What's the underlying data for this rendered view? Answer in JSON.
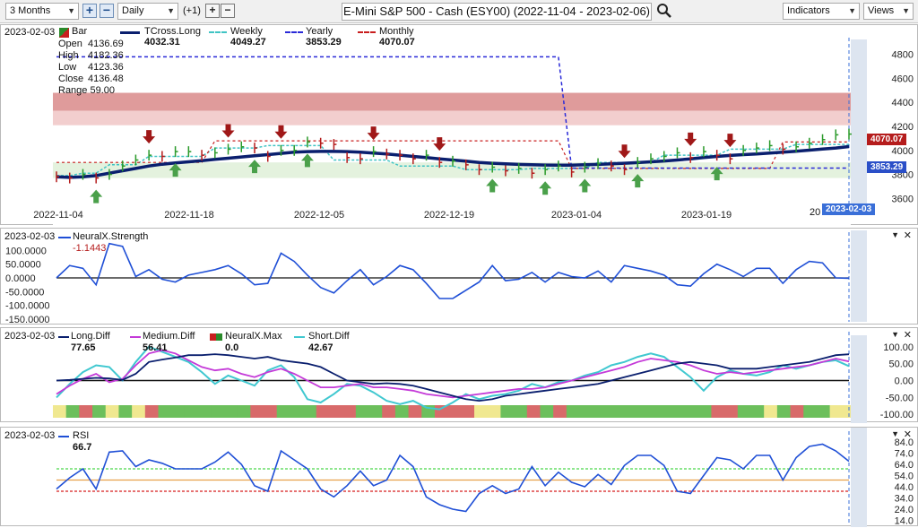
{
  "toolbar": {
    "range": "3 Months",
    "interval": "Daily",
    "offset": "(+1)",
    "title": "E-Mini S&P 500 - Cash (ESY00) (2022-11-04 - 2023-02-06)",
    "indicators": "Indicators",
    "views": "Views"
  },
  "colors": {
    "tcross": "#0a1f6e",
    "weekly": "#40c4c4",
    "yearly": "#2a2ad8",
    "monthly": "#c81e1e",
    "strength": "#1f4fd6",
    "long": "#0a1f6e",
    "medium": "#c43ad8",
    "short": "#40c8d0",
    "rsi": "#1f4fd6"
  },
  "main": {
    "date": "2023-02-03",
    "ohlc": [
      {
        "label": "Open",
        "value": "4136.69"
      },
      {
        "label": "High",
        "value": "4182.36"
      },
      {
        "label": "Low",
        "value": "4123.36"
      },
      {
        "label": "Close",
        "value": "4136.48"
      }
    ],
    "range_label": "Range 59.00",
    "legend": [
      {
        "name": "Bar",
        "value": ""
      },
      {
        "name": "TCross.Long",
        "value": "4032.31"
      },
      {
        "name": "Weekly",
        "value": "4049.27"
      },
      {
        "name": "Yearly",
        "value": "3853.29"
      },
      {
        "name": "Monthly",
        "value": "4070.07"
      }
    ],
    "monthly_tag": "4070.07",
    "yearly_tag": "3853.29",
    "date_tag": "2023-02-03",
    "x_tick_partial": "20"
  },
  "strength_panel": {
    "date": "2023-02-03",
    "name": "NeuralX.Strength",
    "value": "-1.1443"
  },
  "diff_panel": {
    "date": "2023-02-03",
    "legend": [
      {
        "name": "Long.Diff",
        "value": "77.65"
      },
      {
        "name": "Medium.Diff",
        "value": "56.41"
      },
      {
        "name": "NeuralX.Max",
        "value": "0.0"
      },
      {
        "name": "Short.Diff",
        "value": "42.67"
      }
    ]
  },
  "rsi_panel": {
    "date": "2023-02-03",
    "name": "RSI",
    "value": "66.7"
  },
  "chart_data": [
    {
      "type": "line",
      "name": "price",
      "x_ticks": [
        "2022-11-04",
        "2022-11-18",
        "2022-12-05",
        "2022-12-19",
        "2023-01-04",
        "2023-01-19"
      ],
      "y_ticks": [
        3600,
        3800,
        4000,
        4200,
        4400,
        4600,
        4800
      ],
      "ylim": [
        3580,
        4880
      ],
      "series": [
        {
          "name": "TCross.Long",
          "values": [
            3780,
            3775,
            3780,
            3790,
            3810,
            3830,
            3850,
            3870,
            3885,
            3895,
            3905,
            3915,
            3925,
            3935,
            3945,
            3955,
            3965,
            3975,
            3985,
            3990,
            3992,
            3992,
            3990,
            3985,
            3978,
            3970,
            3960,
            3950,
            3940,
            3930,
            3920,
            3910,
            3900,
            3893,
            3888,
            3883,
            3880,
            3878,
            3877,
            3877,
            3880,
            3883,
            3888,
            3893,
            3898,
            3905,
            3912,
            3920,
            3930,
            3940,
            3950,
            3958,
            3965,
            3970,
            3978,
            3985,
            3993,
            4002,
            4012,
            4020,
            4032
          ]
        },
        {
          "name": "Weekly",
          "values": [
            3790,
            3790,
            3810,
            3810,
            3880,
            3880,
            3880,
            3950,
            3950,
            3950,
            3950,
            3950,
            4020,
            4020,
            4020,
            4020,
            4040,
            4040,
            4040,
            4040,
            4040,
            3920,
            3920,
            3920,
            3920,
            3920,
            3870,
            3870,
            3870,
            3870,
            3870,
            3840,
            3840,
            3840,
            3840,
            3840,
            3850,
            3850,
            3850,
            3850,
            3850,
            3900,
            3900,
            3900,
            3900,
            3900,
            3960,
            3960,
            3960,
            3960,
            3960,
            4010,
            4010,
            4010,
            4010,
            4010,
            4050,
            4050,
            4050,
            4050,
            4050
          ]
        },
        {
          "name": "Yearly",
          "values": [
            4780,
            4780,
            4780,
            4780,
            4780,
            4780,
            4780,
            4780,
            4780,
            4780,
            4780,
            4780,
            4780,
            4780,
            4780,
            4780,
            4780,
            4780,
            4780,
            4780,
            4780,
            4780,
            4780,
            4780,
            4780,
            4780,
            4780,
            4780,
            4780,
            4780,
            4780,
            4780,
            4780,
            4780,
            4780,
            4780,
            4780,
            4780,
            4780,
            3853,
            3853,
            3853,
            3853,
            3853,
            3853,
            3853,
            3853,
            3853,
            3853,
            3853,
            3853,
            3853,
            3853,
            3853,
            3853,
            3853,
            3853,
            3853,
            3853,
            3853,
            3853
          ]
        },
        {
          "name": "Monthly",
          "values": [
            3900,
            3900,
            3900,
            3900,
            3900,
            3900,
            3900,
            3900,
            3900,
            3900,
            3900,
            3900,
            4080,
            4080,
            4080,
            4080,
            4080,
            4080,
            4080,
            4080,
            4080,
            4080,
            4080,
            4080,
            4080,
            4080,
            4080,
            4080,
            4080,
            4080,
            4080,
            4080,
            4080,
            4080,
            4080,
            4080,
            4080,
            4080,
            4080,
            3850,
            3850,
            3850,
            3850,
            3850,
            3850,
            3850,
            3850,
            3850,
            3850,
            3850,
            3850,
            3850,
            3850,
            3850,
            3850,
            4070,
            4070,
            4070,
            4070,
            4070,
            4070
          ]
        },
        {
          "name": "Bar",
          "values": [
            3780,
            3770,
            3800,
            3770,
            3800,
            3870,
            3920,
            3960,
            3950,
            3990,
            3990,
            3960,
            3980,
            4010,
            4030,
            4020,
            3950,
            4000,
            4000,
            4070,
            4060,
            4050,
            3940,
            3930,
            3990,
            3970,
            3960,
            3930,
            3960,
            3900,
            3910,
            3880,
            3840,
            3860,
            3830,
            3850,
            3810,
            3840,
            3870,
            3820,
            3860,
            3890,
            3870,
            3840,
            3900,
            3930,
            3950,
            3980,
            3940,
            3990,
            3960,
            3930,
            4000,
            4020,
            4040,
            4010,
            4030,
            4060,
            4090,
            4130,
            4136
          ]
        }
      ],
      "bands": [
        [
          4330,
          4480
        ],
        [
          4210,
          4330
        ]
      ],
      "arrows_down": [
        7,
        13,
        17,
        24,
        29,
        43,
        48,
        51
      ],
      "arrows_up": [
        3,
        9,
        15,
        19,
        33,
        37,
        40,
        44,
        50
      ],
      "legend_placement": "top-left"
    },
    {
      "type": "line",
      "name": "NeuralX.Strength",
      "y_ticks": [
        -150,
        -100,
        -50,
        0,
        50,
        100,
        150
      ],
      "y_tick_labels": [
        "-150.0000",
        "-100.0000",
        "-50.0000",
        "0.0000",
        "50.0000",
        "100.0000",
        ""
      ],
      "ylim": [
        -160,
        160
      ],
      "series": [
        {
          "name": "NeuralX.Strength",
          "values": [
            0,
            45,
            35,
            -25,
            125,
            115,
            5,
            30,
            -5,
            -15,
            10,
            20,
            30,
            45,
            15,
            -25,
            -20,
            90,
            60,
            10,
            -35,
            -55,
            -10,
            30,
            -25,
            5,
            45,
            30,
            -20,
            -75,
            -75,
            -45,
            -15,
            45,
            -10,
            -5,
            20,
            -15,
            20,
            5,
            0,
            25,
            -15,
            45,
            35,
            25,
            10,
            -25,
            -30,
            15,
            50,
            30,
            5,
            35,
            35,
            -20,
            30,
            60,
            55,
            0,
            -1.1443
          ]
        }
      ]
    },
    {
      "type": "line",
      "name": "Diff",
      "y_ticks": [
        -100,
        -50,
        0,
        50,
        100
      ],
      "y_tick_labels": [
        "-100.00",
        "-50.00",
        "0.00",
        "50.00",
        "100.00"
      ],
      "ylim": [
        -110,
        118
      ],
      "series": [
        {
          "name": "Long.Diff",
          "values": [
            0,
            2,
            5,
            8,
            6,
            2,
            20,
            55,
            62,
            68,
            75,
            75,
            78,
            75,
            70,
            65,
            70,
            60,
            55,
            50,
            40,
            20,
            0,
            -5,
            -10,
            -8,
            -10,
            -15,
            -25,
            -35,
            -45,
            -55,
            -60,
            -55,
            -45,
            -40,
            -35,
            -30,
            -25,
            -20,
            -15,
            -10,
            0,
            10,
            20,
            30,
            40,
            50,
            55,
            50,
            45,
            35,
            35,
            35,
            40,
            45,
            50,
            55,
            65,
            75,
            77.65
          ]
        },
        {
          "name": "Medium.Diff",
          "values": [
            -40,
            -15,
            5,
            20,
            -5,
            5,
            45,
            80,
            90,
            80,
            60,
            40,
            30,
            35,
            20,
            10,
            25,
            35,
            20,
            0,
            -20,
            -20,
            -15,
            -10,
            -20,
            -20,
            -25,
            -30,
            -40,
            -45,
            -50,
            -45,
            -40,
            -35,
            -30,
            -25,
            -25,
            -20,
            -10,
            0,
            10,
            20,
            30,
            40,
            55,
            65,
            60,
            55,
            45,
            30,
            20,
            25,
            20,
            25,
            30,
            35,
            40,
            45,
            55,
            65,
            56.41
          ]
        },
        {
          "name": "Short.Diff",
          "values": [
            -50,
            -10,
            25,
            45,
            40,
            0,
            55,
            100,
            85,
            70,
            55,
            25,
            -10,
            15,
            0,
            -15,
            30,
            45,
            10,
            -55,
            -65,
            -40,
            -10,
            -15,
            -35,
            -60,
            -70,
            -60,
            -80,
            -85,
            -65,
            -40,
            -55,
            -45,
            -40,
            -30,
            -10,
            -20,
            -5,
            0,
            15,
            25,
            45,
            55,
            70,
            80,
            70,
            40,
            10,
            -30,
            10,
            30,
            20,
            15,
            25,
            45,
            35,
            45,
            55,
            60,
            42.67
          ]
        }
      ],
      "strip": [
        "y",
        "g",
        "r",
        "g",
        "y",
        "g",
        "y",
        "r",
        "g",
        "g",
        "g",
        "g",
        "g",
        "g",
        "g",
        "r",
        "r",
        "g",
        "g",
        "g",
        "r",
        "r",
        "r",
        "g",
        "g",
        "r",
        "g",
        "r",
        "g",
        "r",
        "r",
        "r",
        "y",
        "y",
        "g",
        "g",
        "r",
        "g",
        "r",
        "g",
        "g",
        "g",
        "g",
        "g",
        "g",
        "g",
        "g",
        "g",
        "g",
        "g",
        "r",
        "r",
        "g",
        "g",
        "y",
        "g",
        "r",
        "g",
        "g",
        "y",
        "y"
      ]
    },
    {
      "type": "line",
      "name": "RSI",
      "y_ticks": [
        14,
        24,
        34,
        44,
        54,
        64,
        74,
        84
      ],
      "y_tick_labels": [
        "14.0",
        "24.0",
        "34.0",
        "44.0",
        "54.0",
        "64.0",
        "74.0",
        "84.0"
      ],
      "ylim": [
        12,
        92
      ],
      "levels": [
        60,
        50,
        40
      ],
      "series": [
        {
          "name": "RSI",
          "values": [
            42,
            52,
            60,
            42,
            75,
            76,
            62,
            68,
            65,
            60,
            60,
            60,
            66,
            75,
            64,
            45,
            40,
            76,
            68,
            60,
            42,
            35,
            45,
            58,
            45,
            50,
            72,
            62,
            35,
            28,
            24,
            22,
            38,
            45,
            38,
            42,
            62,
            45,
            57,
            48,
            44,
            55,
            46,
            63,
            72,
            72,
            63,
            40,
            38,
            54,
            70,
            68,
            60,
            72,
            72,
            50,
            70,
            80,
            82,
            76,
            66.7
          ]
        }
      ]
    }
  ]
}
